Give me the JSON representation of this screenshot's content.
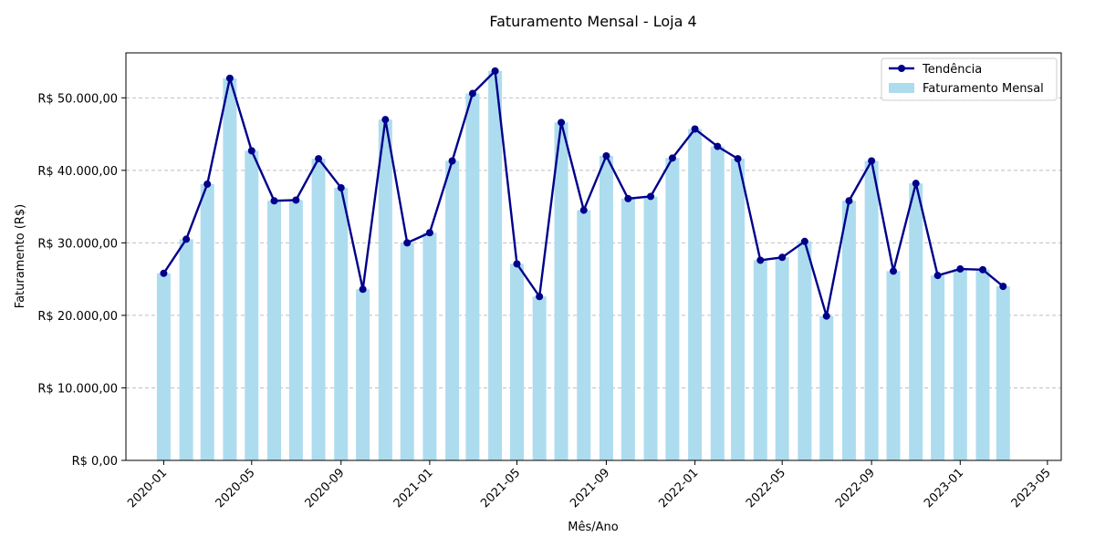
{
  "chart_data": {
    "type": "bar",
    "title": "Faturamento Mensal - Loja 4",
    "xlabel": "Mês/Ano",
    "ylabel": "Faturamento (R$)",
    "categories": [
      "2020-01",
      "2020-02",
      "2020-03",
      "2020-04",
      "2020-05",
      "2020-06",
      "2020-07",
      "2020-08",
      "2020-09",
      "2020-10",
      "2020-11",
      "2020-12",
      "2021-01",
      "2021-02",
      "2021-03",
      "2021-04",
      "2021-05",
      "2021-06",
      "2021-07",
      "2021-08",
      "2021-09",
      "2021-10",
      "2021-11",
      "2021-12",
      "2022-01",
      "2022-02",
      "2022-03",
      "2022-04",
      "2022-05",
      "2022-06",
      "2022-07",
      "2022-08",
      "2022-09",
      "2022-10",
      "2022-11",
      "2022-12",
      "2023-01",
      "2023-02",
      "2023-03"
    ],
    "series": [
      {
        "name": "Faturamento Mensal",
        "type": "bar",
        "color": "#ADDCEF",
        "values": [
          25800,
          30500,
          38100,
          52700,
          42700,
          35800,
          35900,
          41600,
          37600,
          23600,
          47000,
          30000,
          31400,
          41300,
          50600,
          53700,
          27100,
          22600,
          46600,
          34500,
          42000,
          36100,
          36400,
          41700,
          45700,
          43300,
          41600,
          27600,
          28000,
          30200,
          19900,
          35800,
          41300,
          26100,
          38200,
          25500,
          26400,
          26300,
          24000
        ]
      },
      {
        "name": "Tendência",
        "type": "line",
        "color": "#00008B",
        "values": [
          25800,
          30500,
          38100,
          52700,
          42700,
          35800,
          35900,
          41600,
          37600,
          23600,
          47000,
          30000,
          31400,
          41300,
          50600,
          53700,
          27100,
          22600,
          46600,
          34500,
          42000,
          36100,
          36400,
          41700,
          45700,
          43300,
          41600,
          27600,
          28000,
          30200,
          19900,
          35800,
          41300,
          26100,
          38200,
          25500,
          26400,
          26300,
          24000
        ]
      }
    ],
    "x_ticks": [
      "2020-01",
      "2020-05",
      "2020-09",
      "2021-01",
      "2021-05",
      "2021-09",
      "2022-01",
      "2022-05",
      "2022-09",
      "2023-01",
      "2023-05"
    ],
    "y_ticks": [
      0,
      10000,
      20000,
      30000,
      40000,
      50000
    ],
    "y_tick_labels": [
      "R$ 0,00",
      "R$ 10.000,00",
      "R$ 20.000,00",
      "R$ 30.000,00",
      "R$ 40.000,00",
      "R$ 50.000,00"
    ],
    "ylim": [
      0,
      56200
    ],
    "xlim": [
      "2019-11-10",
      "2023-05-20"
    ],
    "grid": "y dashed",
    "legend_position": "top-right"
  }
}
